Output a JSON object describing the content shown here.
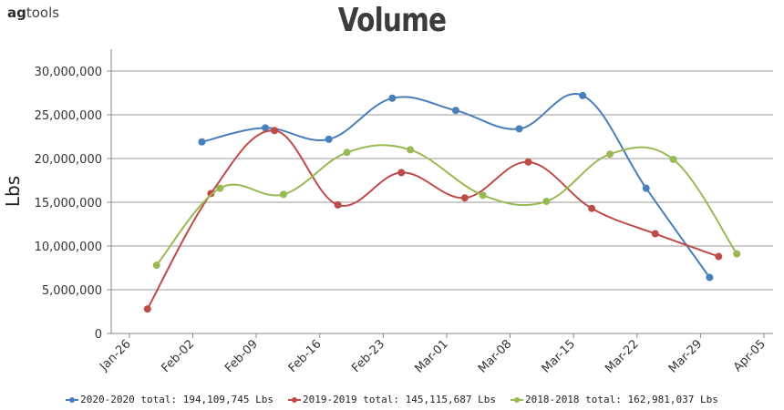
{
  "logo": {
    "ag": "ag",
    "tools": "tools"
  },
  "chart_data": {
    "type": "line",
    "title": "Volume",
    "ylabel": "Lbs",
    "xlabel": "",
    "ylim": [
      0,
      32500000
    ],
    "yticks": [
      0,
      5000000,
      10000000,
      15000000,
      20000000,
      25000000,
      30000000
    ],
    "ytick_labels": [
      "0",
      "5,000,000",
      "10,000,000",
      "15,000,000",
      "20,000,000",
      "25,000,000",
      "30,000,000"
    ],
    "xlim": [
      "2020-01-24",
      "2020-04-06"
    ],
    "xticks": [
      "2020-01-26",
      "2020-02-02",
      "2020-02-09",
      "2020-02-16",
      "2020-02-23",
      "2020-03-01",
      "2020-03-08",
      "2020-03-15",
      "2020-03-22",
      "2020-03-29",
      "2020-04-05"
    ],
    "xtick_labels": [
      "Jan-26",
      "Feb-02",
      "Feb-09",
      "Feb-16",
      "Feb-23",
      "Mar-01",
      "Mar-08",
      "Mar-15",
      "Mar-22",
      "Mar-29",
      "Apr-05"
    ],
    "grid": true,
    "legend_position": "bottom",
    "series": [
      {
        "name": "2020-2020 total: 194,109,745 Lbs",
        "color": "#4a7ebb",
        "x": [
          "2020-02-03",
          "2020-02-10",
          "2020-02-17",
          "2020-02-24",
          "2020-03-02",
          "2020-03-09",
          "2020-03-16",
          "2020-03-23",
          "2020-03-30"
        ],
        "y": [
          21900000,
          23500000,
          22200000,
          26900000,
          25500000,
          23400000,
          27200000,
          16600000,
          6400000
        ]
      },
      {
        "name": "2019-2019 total: 145,115,687 Lbs",
        "color": "#be4b48",
        "x": [
          "2020-01-28",
          "2020-02-04",
          "2020-02-11",
          "2020-02-18",
          "2020-02-25",
          "2020-03-03",
          "2020-03-10",
          "2020-03-17",
          "2020-03-24",
          "2020-03-31"
        ],
        "y": [
          2800000,
          16000000,
          23200000,
          14700000,
          18400000,
          15500000,
          19600000,
          14300000,
          11400000,
          8800000
        ]
      },
      {
        "name": "2018-2018 total: 162,981,037 Lbs",
        "color": "#98b954",
        "x": [
          "2020-01-29",
          "2020-02-05",
          "2020-02-12",
          "2020-02-19",
          "2020-02-26",
          "2020-03-05",
          "2020-03-12",
          "2020-03-19",
          "2020-03-26",
          "2020-04-02"
        ],
        "y": [
          7800000,
          16600000,
          15900000,
          20700000,
          21000000,
          15800000,
          15100000,
          20500000,
          19900000,
          9100000
        ]
      }
    ]
  }
}
